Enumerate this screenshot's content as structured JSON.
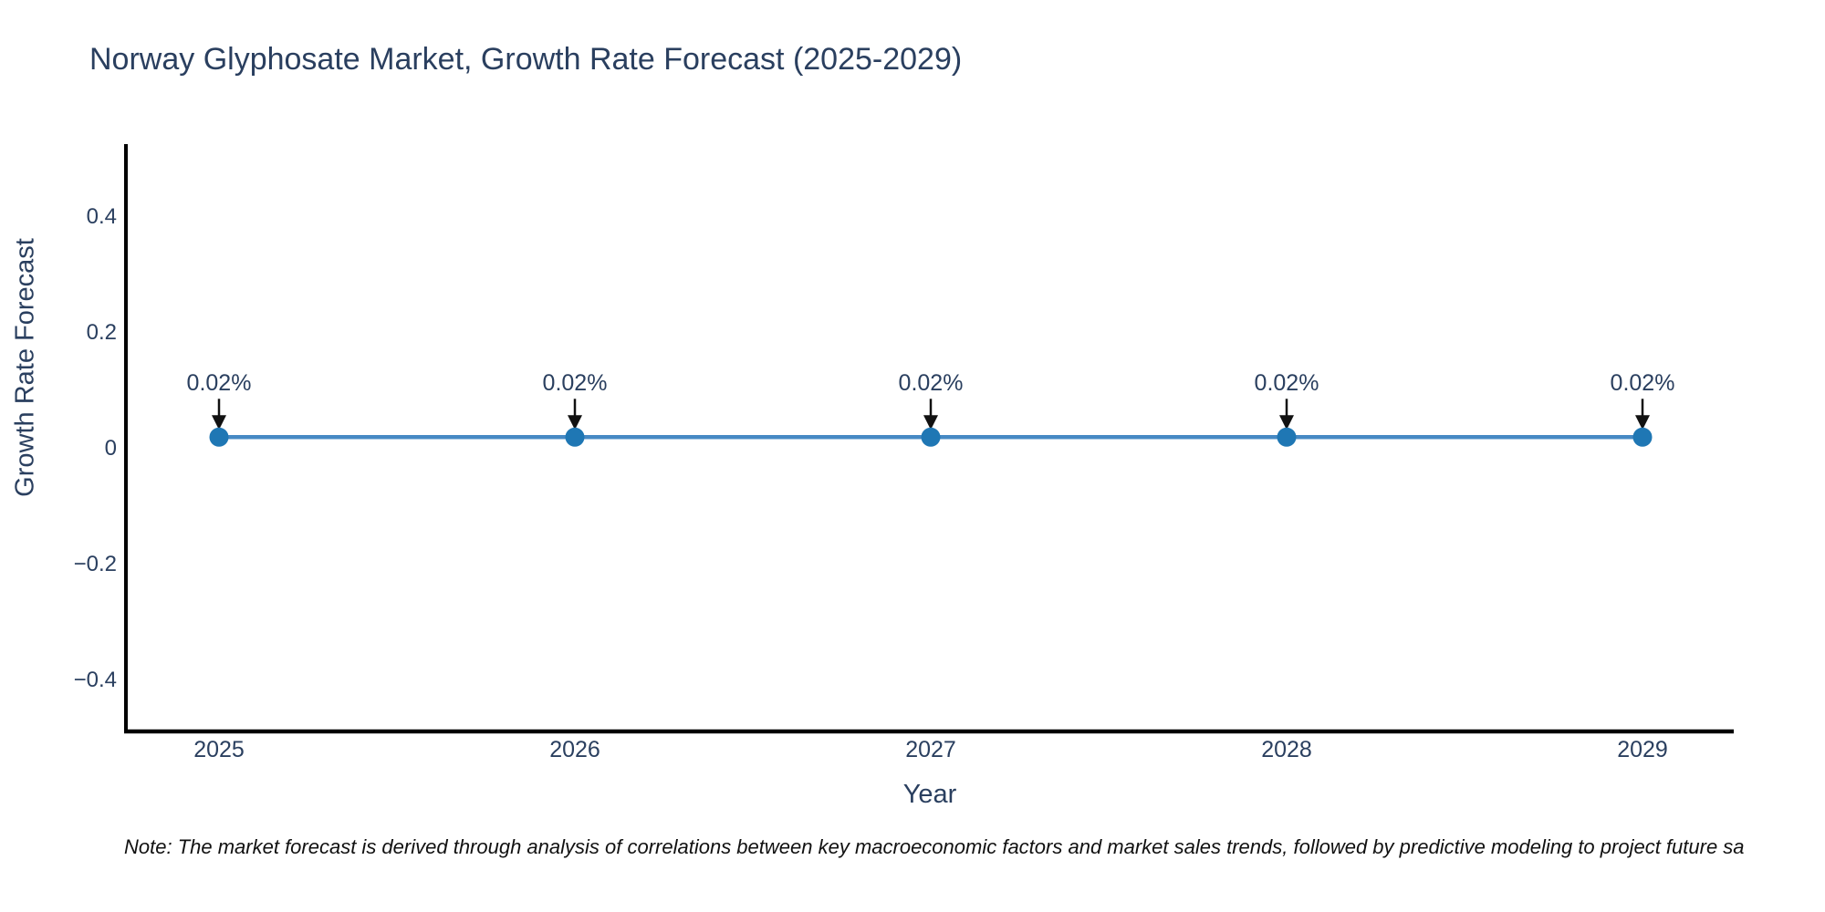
{
  "chart": {
    "title": "Norway Glyphosate Market, Growth Rate Forecast (2025-2029)",
    "x_axis_title": "Year",
    "y_axis_title": "Growth Rate Forecast",
    "note": "Note: The market forecast is derived through analysis of correlations between key macroeconomic factors and market sales trends, followed by predictive modeling to project future sa"
  },
  "chart_data": {
    "type": "line",
    "title": "Norway Glyphosate Market, Growth Rate Forecast (2025-2029)",
    "xlabel": "Year",
    "ylabel": "Growth Rate Forecast",
    "categories": [
      "2025",
      "2026",
      "2027",
      "2028",
      "2029"
    ],
    "values": [
      0.02,
      0.02,
      0.02,
      0.02,
      0.02
    ],
    "point_labels": [
      "0.02%",
      "0.02%",
      "0.02%",
      "0.02%",
      "0.02%"
    ],
    "y_ticks": [
      0.4,
      0.2,
      0,
      -0.2,
      -0.4
    ],
    "ylim": [
      -0.49,
      0.52
    ],
    "grid": false,
    "legend_position": "none",
    "annotations_have_arrows": true,
    "colors": {
      "line": "#4689c4",
      "marker": "#1f77b4",
      "arrow": "#111111",
      "text": "#2a3f5f",
      "axis_spine": "#000000",
      "note_text": "#111111",
      "background": "#ffffff"
    }
  }
}
